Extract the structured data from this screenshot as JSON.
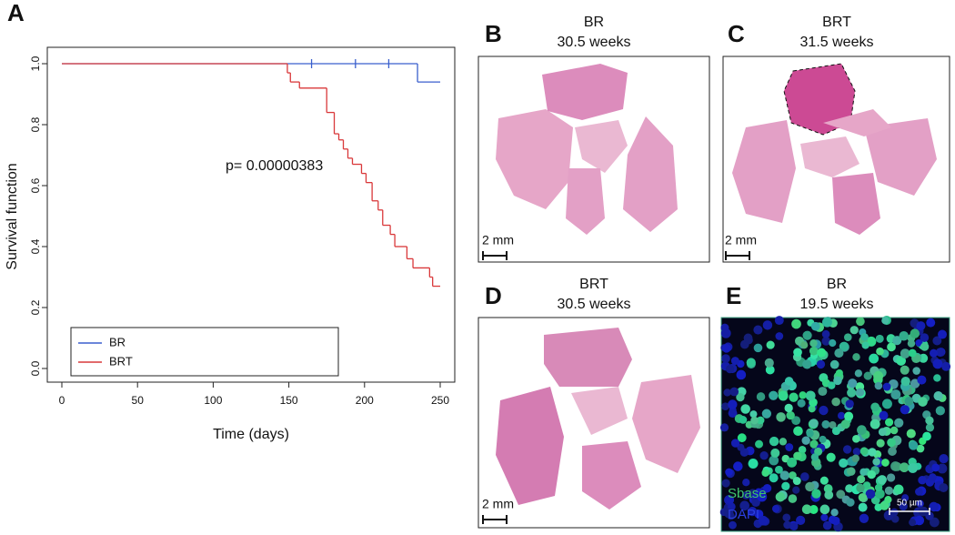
{
  "chart_data": {
    "type": "line",
    "label": "A",
    "xlabel": "Time (days)",
    "ylabel": "Survival function",
    "annotation": "p= 0.00000383",
    "xlim": [
      0,
      250
    ],
    "ylim": [
      0,
      1
    ],
    "xticks": [
      0,
      50,
      100,
      150,
      200,
      250
    ],
    "yticks": [
      {
        "value": 0,
        "label": "0.0"
      },
      {
        "value": 0.2,
        "label": "0.2"
      },
      {
        "value": 0.4,
        "label": "0.4"
      },
      {
        "value": 0.6,
        "label": "0.6"
      },
      {
        "value": 0.8,
        "label": "0.8"
      },
      {
        "value": 1,
        "label": "1.0"
      }
    ],
    "legend": "bottom-left",
    "series": [
      {
        "name": "BR",
        "color": "#3a5fcd",
        "x": [
          0,
          235
        ],
        "values": [
          1.0,
          0.94
        ],
        "censored": [
          165,
          194,
          216
        ]
      },
      {
        "name": "BRT",
        "color": "#d9383a",
        "x": [
          0,
          149,
          151,
          157,
          175,
          180,
          183,
          186,
          189,
          192,
          198,
          201,
          205,
          209,
          212,
          217,
          220,
          228,
          232,
          243,
          245
        ],
        "values": [
          1.0,
          0.97,
          0.94,
          0.92,
          0.84,
          0.77,
          0.75,
          0.72,
          0.69,
          0.67,
          0.64,
          0.61,
          0.55,
          0.52,
          0.47,
          0.44,
          0.4,
          0.36,
          0.33,
          0.3,
          0.27
        ]
      }
    ]
  },
  "panels": [
    {
      "letter": "B",
      "title": "BR",
      "subtitle": "30.5 weeks",
      "scale": "2 mm"
    },
    {
      "letter": "C",
      "title": "BRT",
      "subtitle": "31.5 weeks",
      "scale": "2 mm"
    },
    {
      "letter": "D",
      "title": "BRT",
      "subtitle": "30.5 weeks",
      "scale": "2 mm"
    },
    {
      "letter": "E",
      "title": "BR",
      "subtitle": "19.5 weeks",
      "stain1": "Sbase",
      "stain2": "DAPI",
      "scale": "50 µm"
    }
  ]
}
